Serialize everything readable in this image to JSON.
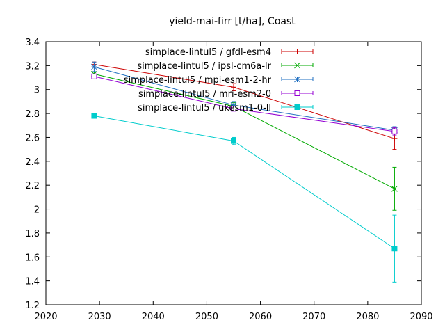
{
  "chart_data": {
    "type": "line",
    "title": "yield-mai-firr [t/ha], Coast",
    "xlabel": "",
    "ylabel": "",
    "xlim": [
      2020,
      2090
    ],
    "ylim": [
      1.2,
      3.4
    ],
    "xticks": [
      2020,
      2030,
      2040,
      2050,
      2060,
      2070,
      2080,
      2090
    ],
    "yticks": [
      1.2,
      1.4,
      1.6,
      1.8,
      2,
      2.2,
      2.4,
      2.6,
      2.8,
      3,
      3.2,
      3.4
    ],
    "grid": false,
    "legend_position": "top-right",
    "x": [
      2029,
      2055,
      2085
    ],
    "series": [
      {
        "name": "simplace-lintul5 / gfdl-esm4",
        "color": "#cc0000",
        "marker": "plus",
        "values": [
          3.21,
          3.02,
          2.59
        ],
        "errors": [
          0.02,
          0.03,
          0.09
        ]
      },
      {
        "name": "simplace-lintul5 / ipsl-cm6a-lr",
        "color": "#00aa00",
        "marker": "cross",
        "values": [
          3.13,
          2.86,
          2.17
        ],
        "errors": [
          0.02,
          0.03,
          0.18
        ]
      },
      {
        "name": "simplace-lintul5 / mpi-esm1-2-hr",
        "color": "#1f6fc0",
        "marker": "star",
        "values": [
          3.19,
          2.87,
          2.66
        ],
        "errors": [
          0.04,
          0.03,
          0.03
        ]
      },
      {
        "name": "simplace-lintul5 / mri-esm2-0",
        "color": "#9400d3",
        "marker": "square-open",
        "values": [
          3.11,
          2.84,
          2.65
        ],
        "errors": [
          0.02,
          0.02,
          0.03
        ]
      },
      {
        "name": "simplace-lintul5 / ukesm1-0-ll",
        "color": "#00cccc",
        "marker": "square-filled",
        "values": [
          2.78,
          2.57,
          1.67
        ],
        "errors": [
          0.02,
          0.03,
          0.28
        ]
      }
    ]
  }
}
